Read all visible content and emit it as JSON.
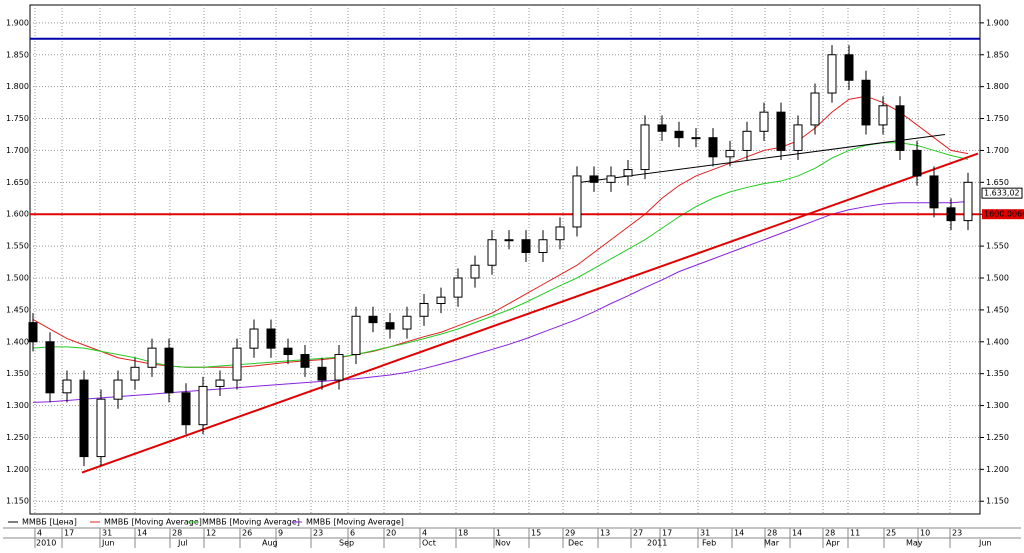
{
  "chart_data": {
    "type": "candlestick",
    "price": {
      "name": "ММВБ [Цена]",
      "color": "#000000",
      "open": [
        1430,
        1400,
        1320,
        1340,
        1220,
        1310,
        1340,
        1360,
        1390,
        1320,
        1270,
        1330,
        1340,
        1390,
        1420,
        1390,
        1380,
        1360,
        1340,
        1380,
        1440,
        1430,
        1420,
        1440,
        1460,
        1470,
        1500,
        1520,
        1560,
        1560,
        1540,
        1560,
        1580,
        1660,
        1650,
        1660,
        1670,
        1740,
        1730,
        1720,
        1720,
        1690,
        1700,
        1730,
        1760,
        1700,
        1740,
        1790,
        1850,
        1810,
        1740,
        1770,
        1700,
        1660,
        1610,
        1590
      ],
      "high": [
        1445,
        1415,
        1355,
        1355,
        1325,
        1355,
        1375,
        1405,
        1405,
        1335,
        1345,
        1355,
        1405,
        1435,
        1435,
        1405,
        1395,
        1375,
        1395,
        1455,
        1455,
        1445,
        1455,
        1475,
        1485,
        1515,
        1535,
        1575,
        1575,
        1575,
        1575,
        1595,
        1675,
        1675,
        1675,
        1685,
        1755,
        1755,
        1745,
        1735,
        1735,
        1715,
        1745,
        1775,
        1775,
        1755,
        1805,
        1865,
        1865,
        1825,
        1785,
        1785,
        1715,
        1675,
        1625,
        1665
      ],
      "low": [
        1385,
        1305,
        1305,
        1205,
        1205,
        1295,
        1325,
        1345,
        1305,
        1255,
        1255,
        1315,
        1325,
        1375,
        1375,
        1365,
        1345,
        1325,
        1325,
        1365,
        1415,
        1405,
        1405,
        1425,
        1445,
        1455,
        1485,
        1505,
        1545,
        1525,
        1525,
        1545,
        1565,
        1635,
        1635,
        1645,
        1655,
        1715,
        1705,
        1705,
        1675,
        1675,
        1685,
        1715,
        1685,
        1685,
        1725,
        1775,
        1795,
        1725,
        1725,
        1685,
        1645,
        1595,
        1575,
        1575
      ],
      "close": [
        1400,
        1320,
        1340,
        1220,
        1310,
        1340,
        1360,
        1390,
        1320,
        1270,
        1330,
        1340,
        1390,
        1420,
        1390,
        1380,
        1360,
        1340,
        1380,
        1440,
        1430,
        1420,
        1440,
        1460,
        1470,
        1500,
        1520,
        1560,
        1560,
        1540,
        1560,
        1580,
        1660,
        1650,
        1660,
        1670,
        1740,
        1730,
        1720,
        1720,
        1690,
        1700,
        1730,
        1760,
        1700,
        1740,
        1790,
        1850,
        1810,
        1740,
        1770,
        1700,
        1660,
        1610,
        1590,
        1650
      ]
    },
    "series": [
      {
        "name": "ММВБ [Moving Average]",
        "color": "#e02020",
        "values": [
          1435,
          1420,
          1405,
          1395,
          1385,
          1375,
          1370,
          1365,
          1362,
          1360,
          1360,
          1360,
          1360,
          1362,
          1365,
          1368,
          1370,
          1372,
          1375,
          1380,
          1385,
          1392,
          1400,
          1408,
          1415,
          1425,
          1435,
          1445,
          1460,
          1475,
          1490,
          1505,
          1520,
          1540,
          1560,
          1580,
          1600,
          1625,
          1645,
          1660,
          1670,
          1680,
          1690,
          1700,
          1705,
          1715,
          1735,
          1760,
          1780,
          1785,
          1775,
          1760,
          1740,
          1720,
          1700,
          1695
        ]
      },
      {
        "name": "ММВБ [Moving Average]",
        "color": "#22cc22",
        "values": [
          1390,
          1392,
          1392,
          1390,
          1385,
          1380,
          1375,
          1368,
          1362,
          1360,
          1360,
          1362,
          1364,
          1366,
          1368,
          1370,
          1372,
          1374,
          1376,
          1380,
          1386,
          1392,
          1398,
          1405,
          1412,
          1420,
          1430,
          1440,
          1450,
          1462,
          1475,
          1488,
          1500,
          1515,
          1530,
          1545,
          1560,
          1578,
          1596,
          1612,
          1625,
          1635,
          1642,
          1648,
          1652,
          1660,
          1672,
          1688,
          1700,
          1708,
          1712,
          1712,
          1708,
          1700,
          1692,
          1686
        ]
      },
      {
        "name": "ММВБ [Moving Average]",
        "color": "#8822dd",
        "values": [
          1305,
          1306,
          1308,
          1310,
          1312,
          1314,
          1316,
          1318,
          1320,
          1322,
          1324,
          1326,
          1328,
          1330,
          1332,
          1334,
          1336,
          1338,
          1340,
          1342,
          1345,
          1348,
          1352,
          1358,
          1365,
          1372,
          1380,
          1388,
          1396,
          1405,
          1415,
          1425,
          1435,
          1447,
          1460,
          1472,
          1485,
          1497,
          1510,
          1520,
          1530,
          1540,
          1550,
          1560,
          1570,
          1580,
          1590,
          1600,
          1607,
          1612,
          1616,
          1618,
          1618,
          1618,
          1618,
          1620
        ]
      }
    ],
    "hlines": [
      {
        "value": 1875,
        "color": "#0000aa"
      },
      {
        "value": 1600.0066,
        "color": "#e00000",
        "label": "1600,0066"
      }
    ],
    "trend_lines": [
      {
        "color": "#e00000",
        "start": 1195,
        "end": 1695
      },
      {
        "color": "#000000",
        "start": 1650,
        "end": 1725
      }
    ],
    "last_price": {
      "value": 1633.02,
      "label": "1.633,02"
    },
    "ylim": [
      1130,
      1928
    ],
    "yticks": [
      {
        "value": 1150,
        "label": "1.150"
      },
      {
        "value": 1200,
        "label": "1.200"
      },
      {
        "value": 1250,
        "label": "1.250"
      },
      {
        "value": 1300,
        "label": "1.300"
      },
      {
        "value": 1350,
        "label": "1.350"
      },
      {
        "value": 1400,
        "label": "1.400"
      },
      {
        "value": 1450,
        "label": "1.450"
      },
      {
        "value": 1500,
        "label": "1.500"
      },
      {
        "value": 1550,
        "label": "1.550"
      },
      {
        "value": 1600,
        "label": "1.600"
      },
      {
        "value": 1650,
        "label": "1.650"
      },
      {
        "value": 1700,
        "label": "1.700"
      },
      {
        "value": 1750,
        "label": "1.750"
      },
      {
        "value": 1800,
        "label": "1.800"
      },
      {
        "value": 1850,
        "label": "1.850"
      },
      {
        "value": 1900,
        "label": "1.900"
      }
    ],
    "day_labels": [
      "4",
      "17",
      "31",
      "14",
      "28",
      "12",
      "26",
      "9",
      "23",
      "6",
      "20",
      "4",
      "18",
      "1",
      "15",
      "29",
      "13",
      "27",
      "17",
      "31",
      "14",
      "28",
      "14",
      "28",
      "11",
      "25",
      "10",
      "23"
    ],
    "month_labels": [
      "2010",
      "Jun",
      "Jul",
      "Aug",
      "Sep",
      "Oct",
      "Nov",
      "Dec",
      "2011",
      "Feb",
      "Mar",
      "Apr",
      "May",
      "Jun"
    ],
    "grid": true
  }
}
